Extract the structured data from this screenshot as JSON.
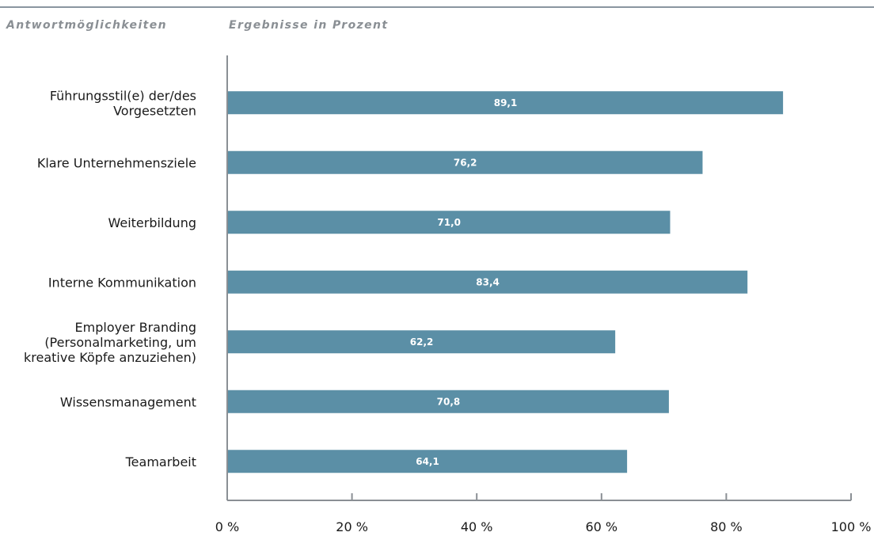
{
  "header": {
    "left_title": "Antwortmöglichkeiten",
    "right_title": "Ergebnisse in Prozent"
  },
  "colors": {
    "bar": "#5b8fa6",
    "axis": "#8a8f94",
    "rule": "#8a96a0"
  },
  "chart_data": {
    "type": "bar",
    "orientation": "horizontal",
    "categories": [
      [
        "Führungsstil(e) der/des",
        "Vorgesetzten"
      ],
      [
        "Klare Unternehmensziele"
      ],
      [
        "Weiterbildung"
      ],
      [
        "Interne Kommunikation"
      ],
      [
        "Employer Branding",
        "(Personalmarketing, um",
        "kreative Köpfe anzuziehen)"
      ],
      [
        "Wissensmanagement"
      ],
      [
        "Teamarbeit"
      ]
    ],
    "values": [
      89.1,
      76.2,
      71.0,
      83.4,
      62.2,
      70.8,
      64.1
    ],
    "value_labels": [
      "89,1",
      "76,2",
      "71,0",
      "83,4",
      "62,2",
      "70,8",
      "64,1"
    ],
    "xlim": [
      0,
      100
    ],
    "xticks": [
      0,
      20,
      40,
      60,
      80,
      100
    ],
    "xtick_labels": [
      "0 %",
      "20 %",
      "40 %",
      "60 %",
      "80 %",
      "100 %"
    ],
    "xlabel": "",
    "ylabel": "",
    "grid": false,
    "legend": "none"
  }
}
